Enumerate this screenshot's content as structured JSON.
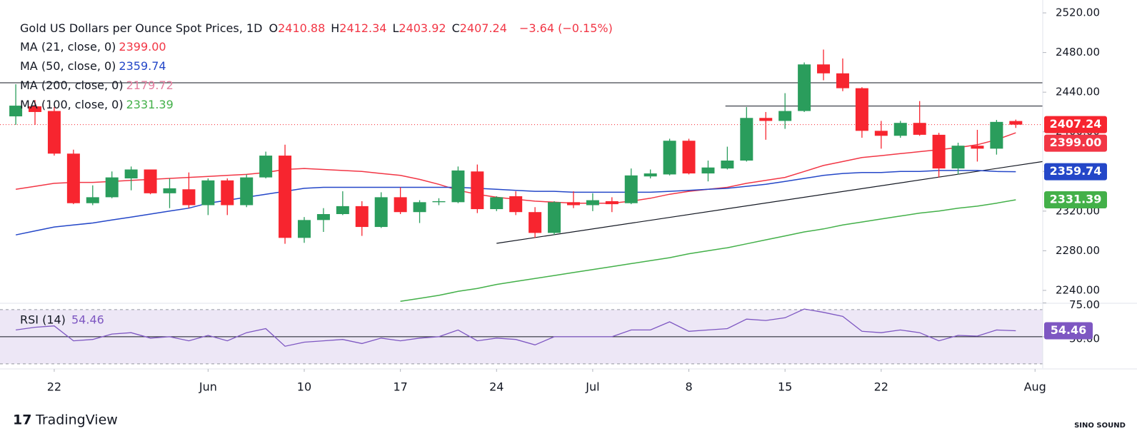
{
  "chart_data": {
    "type": "candlestick",
    "title": "Gold US Dollars per Ounce Spot Prices, 1D",
    "ohlc_letters": [
      "O",
      "H",
      "L",
      "C"
    ],
    "change": "−3.64 (−0.15%)",
    "up_color": "#2a9d5c",
    "down_color": "#f7252f",
    "open": [
      2415.6,
      2425.7,
      2421,
      2378,
      2328,
      2334,
      2353,
      2362,
      2338,
      2342,
      2326,
      2351,
      2326,
      2354,
      2376,
      2293,
      2311,
      2317,
      2325,
      2304,
      2334,
      2319,
      2329,
      2329,
      2360,
      2322,
      2335,
      2319,
      2298,
      2329,
      2326,
      2330,
      2328,
      2355,
      2357,
      2391,
      2358,
      2363,
      2371,
      2414,
      2411,
      2421,
      2468,
      2459,
      2444,
      2401,
      2396,
      2409,
      2397,
      2363,
      2386,
      2383,
      2410.88
    ],
    "high": [
      2448,
      2432,
      2425,
      2382,
      2346,
      2360,
      2365,
      2362,
      2353,
      2359,
      2353,
      2353,
      2357,
      2380,
      2387,
      2314,
      2323,
      2340,
      2330,
      2339,
      2344,
      2331,
      2333,
      2365,
      2367,
      2335,
      2340,
      2324,
      2330,
      2340,
      2338,
      2334,
      2363,
      2362,
      2393,
      2393,
      2371,
      2385,
      2425,
      2420,
      2439,
      2470,
      2483,
      2474,
      2445,
      2411,
      2411,
      2431,
      2399,
      2389,
      2402,
      2412,
      2412.34
    ],
    "low": [
      2407,
      2407,
      2376,
      2327,
      2326,
      2333,
      2341,
      2337,
      2323,
      2323,
      2316,
      2316,
      2324,
      2353,
      2287,
      2288,
      2299,
      2316,
      2295,
      2303,
      2317,
      2308,
      2326,
      2328,
      2318,
      2320,
      2316,
      2293,
      2296,
      2323,
      2320,
      2319,
      2327,
      2353,
      2356,
      2357,
      2350,
      2362,
      2370,
      2392,
      2403,
      2420,
      2452,
      2441,
      2394,
      2383,
      2394,
      2396,
      2354,
      2357,
      2370,
      2377,
      2403.92
    ],
    "close": [
      2426.4,
      2420,
      2378,
      2328,
      2334,
      2354,
      2362,
      2338,
      2343,
      2326,
      2351,
      2326,
      2354,
      2376,
      2293,
      2311,
      2317,
      2325,
      2304,
      2334,
      2319,
      2329,
      2330,
      2361,
      2322,
      2334,
      2319,
      2298,
      2329,
      2326,
      2331,
      2327,
      2356,
      2358,
      2391,
      2358,
      2364,
      2371,
      2414,
      2411,
      2421,
      2468,
      2459,
      2444,
      2401,
      2396,
      2409,
      2397,
      2363,
      2386,
      2383,
      2410,
      2407.24
    ],
    "ylim": [
      2227,
      2533
    ],
    "yticks": [
      {
        "value": 2240,
        "label": "2240.00"
      },
      {
        "value": 2280,
        "label": "2280.00"
      },
      {
        "value": 2320,
        "label": "2320.00"
      },
      {
        "value": 2360,
        "label": "2360.00"
      },
      {
        "value": 2400,
        "label": "2400.00"
      },
      {
        "value": 2440,
        "label": "2440.00"
      },
      {
        "value": 2480,
        "label": "2480.00"
      },
      {
        "value": 2520,
        "label": "2520.00"
      }
    ],
    "xlim": [
      -0.82,
      53.4
    ],
    "xticks": [
      {
        "value": 2,
        "label": "22"
      },
      {
        "value": 10,
        "label": "Jun"
      },
      {
        "value": 15,
        "label": "10"
      },
      {
        "value": 20,
        "label": "17"
      },
      {
        "value": 25,
        "label": "24"
      },
      {
        "value": 30,
        "label": "Jul"
      },
      {
        "value": 35,
        "label": "8"
      },
      {
        "value": 40,
        "label": "15"
      },
      {
        "value": 45,
        "label": "22"
      },
      {
        "value": 53,
        "label": "Aug"
      }
    ],
    "series": [
      {
        "name": "MA (21, close, 0)",
        "color": "#f23645",
        "legend_value": "2399.00",
        "values": [
          2342,
          2345,
          2348,
          2349,
          2349,
          2350,
          2351,
          2352,
          2353,
          2354,
          2355,
          2356,
          2357,
          2359,
          2362,
          2363,
          2362,
          2361,
          2360,
          2358,
          2356,
          2352,
          2347,
          2341,
          2337,
          2334,
          2332,
          2330,
          2329,
          2328,
          2328,
          2328,
          2330,
          2333,
          2337,
          2340,
          2342,
          2344,
          2348,
          2351,
          2354,
          2360,
          2366,
          2370,
          2374,
          2376,
          2378,
          2380,
          2382,
          2384,
          2387,
          2392,
          2399
        ]
      },
      {
        "name": "MA (50, close, 0)",
        "color": "#2447c8",
        "legend_value": "2359.74",
        "values": [
          2296,
          2300,
          2304,
          2306,
          2308,
          2311,
          2314,
          2317,
          2320,
          2323,
          2328,
          2331,
          2334,
          2337,
          2340,
          2343,
          2344,
          2344,
          2344,
          2344,
          2344,
          2344,
          2344,
          2344,
          2343,
          2342,
          2341,
          2340,
          2340,
          2339,
          2339,
          2339,
          2339,
          2339,
          2340,
          2341,
          2342,
          2343,
          2345,
          2347,
          2350,
          2353,
          2356,
          2358,
          2359,
          2359,
          2360,
          2360,
          2361,
          2361,
          2361,
          2360,
          2359.74
        ]
      },
      {
        "name": "MA (200, close, 0)",
        "color": "#e57fa0",
        "legend_value": "2179.72"
      },
      {
        "name": "MA (100, close, 0)",
        "color": "#43b049",
        "legend_value": "2331.39",
        "values": [
          null,
          null,
          null,
          null,
          null,
          null,
          null,
          null,
          null,
          null,
          null,
          null,
          null,
          null,
          null,
          null,
          null,
          null,
          null,
          null,
          2229,
          2232,
          2235,
          2239,
          2242,
          2246,
          2249,
          2252,
          2255,
          2258,
          2261,
          2264,
          2267,
          2270,
          2273,
          2277,
          2280,
          2283,
          2287,
          2291,
          2295,
          2299,
          2302,
          2306,
          2309,
          2312,
          2315,
          2318,
          2320,
          2323,
          2325,
          2328,
          2331.39
        ]
      }
    ],
    "levels": [
      {
        "value": 2449.5,
        "from": -0.82
      },
      {
        "value": 2426,
        "from": 36.9
      }
    ],
    "trendline": {
      "x": [
        25,
        53.4
      ],
      "y": [
        2287.5,
        2370
      ]
    },
    "rsi": {
      "name": "RSI (14)",
      "color": "#7e57c2",
      "values": [
        55,
        57,
        58,
        47,
        48,
        52,
        53,
        49,
        50,
        47,
        51,
        47,
        53,
        56,
        43,
        46,
        47,
        48,
        45,
        49,
        47,
        49,
        50,
        55,
        47,
        49,
        48,
        44,
        50,
        50,
        50,
        50,
        55,
        55,
        61,
        54,
        55,
        56,
        63,
        62,
        64,
        70.5,
        68,
        65,
        54,
        53,
        55,
        53,
        47,
        51,
        50.5,
        55,
        54.46
      ],
      "ylim": [
        26.8,
        74.7
      ],
      "yticks": [
        {
          "value": 75,
          "label": "75.00"
        },
        {
          "value": 50,
          "label": "50.00"
        }
      ],
      "bands": [
        70,
        50,
        30
      ]
    },
    "footer": "TradingView",
    "watermark": "SINO SOUND"
  }
}
